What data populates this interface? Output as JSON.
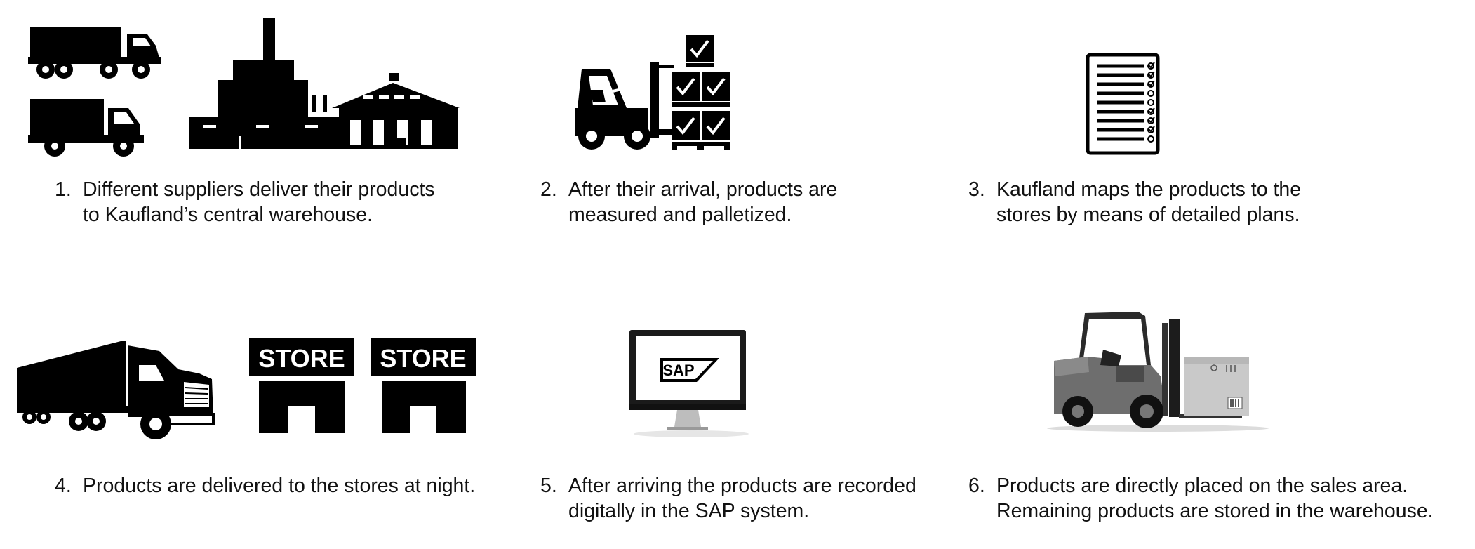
{
  "steps": [
    {
      "number": "1.",
      "lines": [
        "Different suppliers deliver their products",
        "to Kaufland’s central warehouse."
      ],
      "icons": [
        "truck-icon",
        "delivery-truck-icon",
        "factory-warehouse-icon"
      ]
    },
    {
      "number": "2.",
      "lines": [
        "After their arrival, products are",
        "measured and palletized."
      ],
      "icons": [
        "forklift-icon",
        "checked-pallets-icon"
      ]
    },
    {
      "number": "3.",
      "lines": [
        "Kaufland maps the products to the",
        "stores by means of detailed plans."
      ],
      "icons": [
        "checklist-icon"
      ]
    },
    {
      "number": "4.",
      "lines": [
        "Products are delivered to the stores at night."
      ],
      "icons": [
        "semi-truck-icon",
        "store-icon",
        "store-icon"
      ],
      "store_label": "STORE"
    },
    {
      "number": "5.",
      "lines": [
        "After arriving the products are recorded",
        "digitally in the SAP system."
      ],
      "icons": [
        "sap-monitor-icon"
      ],
      "sap_label": "SAP"
    },
    {
      "number": "6.",
      "lines": [
        "Products are directly placed on the sales area.",
        "Remaining products are stored in the warehouse."
      ],
      "icons": [
        "forklift-photo-icon"
      ]
    }
  ]
}
